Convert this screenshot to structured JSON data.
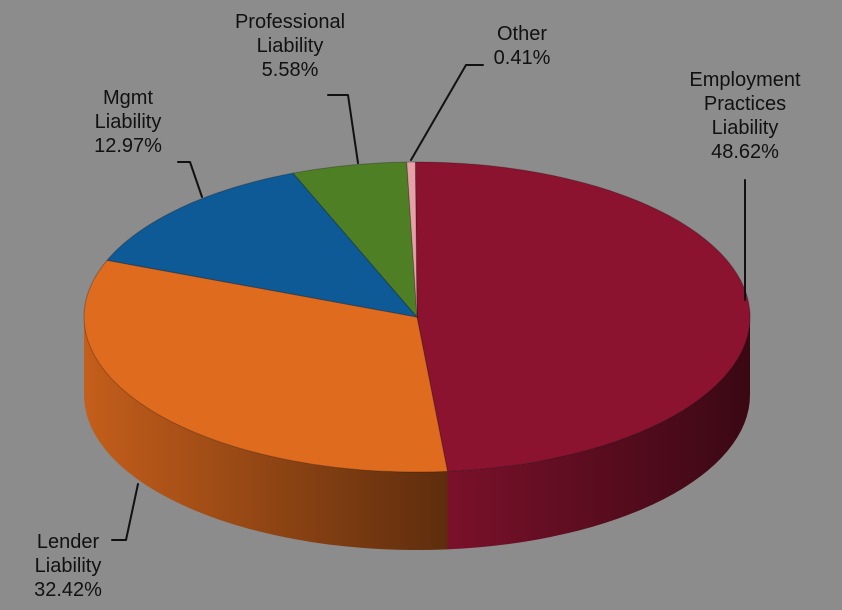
{
  "chart_data": {
    "type": "pie",
    "style": "3d",
    "slices": [
      {
        "name": "Employment Practices Liability",
        "label_lines": [
          "Employment",
          "Practices",
          "Liability"
        ],
        "percent_text": "48.62%",
        "value": 48.62,
        "color": "#8b1330"
      },
      {
        "name": "Lender Liability",
        "label_lines": [
          "Lender",
          "Liability"
        ],
        "percent_text": "32.42%",
        "value": 32.42,
        "color": "#df6b1f"
      },
      {
        "name": "Mgmt Liability",
        "label_lines": [
          "Mgmt",
          "Liability"
        ],
        "percent_text": "12.97%",
        "value": 12.97,
        "color": "#0e5a96"
      },
      {
        "name": "Professional Liability",
        "label_lines": [
          "Professional",
          "Liability"
        ],
        "percent_text": "5.58%",
        "value": 5.58,
        "color": "#4f7f24"
      },
      {
        "name": "Other",
        "label_lines": [
          "Other"
        ],
        "percent_text": "0.41%",
        "value": 0.41,
        "color": "#e8a0a8"
      }
    ],
    "legend": "none"
  }
}
